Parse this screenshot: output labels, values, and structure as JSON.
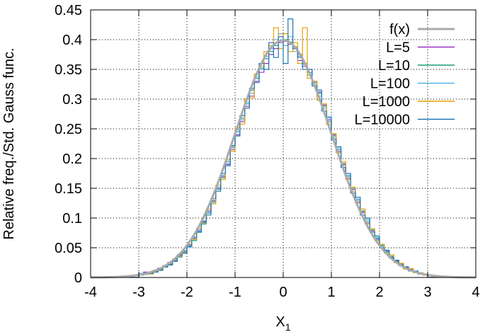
{
  "chart_data": {
    "type": "line",
    "xlabel": "X",
    "xlabel_subscript": "1",
    "ylabel": "Relative freq./Std. Gauss func.",
    "xlim": [
      -4,
      4
    ],
    "ylim": [
      0,
      0.45
    ],
    "x_ticks": [
      "-4",
      "-3",
      "-2",
      "-1",
      "0",
      "1",
      "2",
      "3",
      "4"
    ],
    "y_ticks": [
      "0",
      "0.05",
      "0.1",
      "0.15",
      "0.2",
      "0.25",
      "0.3",
      "0.35",
      "0.4",
      "0.45"
    ],
    "grid": true,
    "legend_position": "top-right",
    "series": [
      {
        "name": "f(x)",
        "color": "#aaaaaa",
        "kind": "smooth",
        "function": "standard-normal-pdf"
      },
      {
        "name": "L=5",
        "color": "#9b30c8",
        "kind": "step",
        "bin_width": 0.1,
        "x": [
          -3.0,
          -2.9,
          -2.8,
          -2.7,
          -2.6,
          -2.5,
          -2.4,
          -2.3,
          -2.2,
          -2.1,
          -2.0,
          -1.9,
          -1.8,
          -1.7,
          -1.6,
          -1.5,
          -1.4,
          -1.3,
          -1.2,
          -1.1,
          -1.0,
          -0.9,
          -0.8,
          -0.7,
          -0.6,
          -0.5,
          -0.4,
          -0.3,
          -0.2,
          -0.1,
          0.0,
          0.1,
          0.2,
          0.3,
          0.4,
          0.5,
          0.6,
          0.7,
          0.8,
          0.9,
          1.0,
          1.1,
          1.2,
          1.3,
          1.4,
          1.5,
          1.6,
          1.7,
          1.8,
          1.9,
          2.0,
          2.1,
          2.2,
          2.3,
          2.4,
          2.5,
          2.6,
          2.7,
          2.8,
          2.9
        ],
        "values": [
          0.006,
          0.009,
          0.008,
          0.012,
          0.016,
          0.02,
          0.025,
          0.03,
          0.037,
          0.045,
          0.055,
          0.066,
          0.08,
          0.095,
          0.112,
          0.13,
          0.15,
          0.17,
          0.19,
          0.215,
          0.24,
          0.262,
          0.288,
          0.305,
          0.33,
          0.345,
          0.36,
          0.375,
          0.385,
          0.395,
          0.397,
          0.392,
          0.385,
          0.365,
          0.355,
          0.35,
          0.33,
          0.312,
          0.29,
          0.265,
          0.24,
          0.212,
          0.19,
          0.167,
          0.148,
          0.127,
          0.11,
          0.092,
          0.078,
          0.064,
          0.054,
          0.044,
          0.035,
          0.028,
          0.022,
          0.017,
          0.014,
          0.01,
          0.008,
          0.005
        ]
      },
      {
        "name": "L=10",
        "color": "#159e7a",
        "kind": "step",
        "bin_width": 0.1,
        "x": [
          -3.0,
          -2.9,
          -2.8,
          -2.7,
          -2.6,
          -2.5,
          -2.4,
          -2.3,
          -2.2,
          -2.1,
          -2.0,
          -1.9,
          -1.8,
          -1.7,
          -1.6,
          -1.5,
          -1.4,
          -1.3,
          -1.2,
          -1.1,
          -1.0,
          -0.9,
          -0.8,
          -0.7,
          -0.6,
          -0.5,
          -0.4,
          -0.3,
          -0.2,
          -0.1,
          0.0,
          0.1,
          0.2,
          0.3,
          0.4,
          0.5,
          0.6,
          0.7,
          0.8,
          0.9,
          1.0,
          1.1,
          1.2,
          1.3,
          1.4,
          1.5,
          1.6,
          1.7,
          1.8,
          1.9,
          2.0,
          2.1,
          2.2,
          2.3,
          2.4,
          2.5,
          2.6,
          2.7,
          2.8,
          2.9
        ],
        "values": [
          0.004,
          0.006,
          0.008,
          0.01,
          0.013,
          0.018,
          0.022,
          0.028,
          0.035,
          0.043,
          0.052,
          0.062,
          0.076,
          0.09,
          0.108,
          0.128,
          0.148,
          0.168,
          0.195,
          0.22,
          0.245,
          0.268,
          0.292,
          0.315,
          0.335,
          0.352,
          0.368,
          0.38,
          0.39,
          0.398,
          0.4,
          0.396,
          0.388,
          0.375,
          0.36,
          0.345,
          0.328,
          0.31,
          0.288,
          0.262,
          0.238,
          0.215,
          0.192,
          0.17,
          0.15,
          0.13,
          0.112,
          0.095,
          0.08,
          0.066,
          0.054,
          0.043,
          0.034,
          0.027,
          0.021,
          0.016,
          0.012,
          0.009,
          0.006,
          0.005
        ]
      },
      {
        "name": "L=100",
        "color": "#56b4e9",
        "kind": "step",
        "bin_width": 0.1,
        "x": [
          -3.0,
          -2.9,
          -2.8,
          -2.7,
          -2.6,
          -2.5,
          -2.4,
          -2.3,
          -2.2,
          -2.1,
          -2.0,
          -1.9,
          -1.8,
          -1.7,
          -1.6,
          -1.5,
          -1.4,
          -1.3,
          -1.2,
          -1.1,
          -1.0,
          -0.9,
          -0.8,
          -0.7,
          -0.6,
          -0.5,
          -0.4,
          -0.3,
          -0.2,
          -0.1,
          0.0,
          0.1,
          0.2,
          0.3,
          0.4,
          0.5,
          0.6,
          0.7,
          0.8,
          0.9,
          1.0,
          1.1,
          1.2,
          1.3,
          1.4,
          1.5,
          1.6,
          1.7,
          1.8,
          1.9,
          2.0,
          2.1,
          2.2,
          2.3,
          2.4,
          2.5,
          2.6,
          2.7,
          2.8,
          2.9
        ],
        "values": [
          0.007,
          0.005,
          0.009,
          0.011,
          0.015,
          0.017,
          0.024,
          0.029,
          0.034,
          0.044,
          0.051,
          0.065,
          0.078,
          0.094,
          0.11,
          0.126,
          0.152,
          0.172,
          0.192,
          0.218,
          0.248,
          0.265,
          0.295,
          0.31,
          0.338,
          0.35,
          0.372,
          0.385,
          0.4,
          0.41,
          0.39,
          0.405,
          0.38,
          0.372,
          0.358,
          0.34,
          0.325,
          0.305,
          0.285,
          0.268,
          0.235,
          0.218,
          0.188,
          0.172,
          0.145,
          0.132,
          0.108,
          0.098,
          0.079,
          0.068,
          0.052,
          0.045,
          0.036,
          0.026,
          0.023,
          0.015,
          0.013,
          0.01,
          0.007,
          0.004
        ]
      },
      {
        "name": "L=1000",
        "color": "#e69f00",
        "kind": "step",
        "bin_width": 0.1,
        "x": [
          -3.0,
          -2.9,
          -2.8,
          -2.7,
          -2.6,
          -2.5,
          -2.4,
          -2.3,
          -2.2,
          -2.1,
          -2.0,
          -1.9,
          -1.8,
          -1.7,
          -1.6,
          -1.5,
          -1.4,
          -1.3,
          -1.2,
          -1.1,
          -1.0,
          -0.9,
          -0.8,
          -0.7,
          -0.6,
          -0.5,
          -0.4,
          -0.3,
          -0.2,
          -0.1,
          0.0,
          0.1,
          0.2,
          0.3,
          0.4,
          0.5,
          0.6,
          0.7,
          0.8,
          0.9,
          1.0,
          1.1,
          1.2,
          1.3,
          1.4,
          1.5,
          1.6,
          1.7,
          1.8,
          1.9,
          2.0,
          2.1,
          2.2,
          2.3,
          2.4,
          2.5,
          2.6,
          2.7,
          2.8,
          2.9
        ],
        "values": [
          0.005,
          0.007,
          0.006,
          0.01,
          0.014,
          0.019,
          0.023,
          0.031,
          0.036,
          0.042,
          0.056,
          0.064,
          0.083,
          0.092,
          0.115,
          0.124,
          0.155,
          0.165,
          0.198,
          0.212,
          0.252,
          0.258,
          0.3,
          0.302,
          0.342,
          0.355,
          0.38,
          0.39,
          0.42,
          0.385,
          0.41,
          0.38,
          0.395,
          0.36,
          0.42,
          0.335,
          0.33,
          0.298,
          0.292,
          0.258,
          0.242,
          0.21,
          0.195,
          0.165,
          0.152,
          0.125,
          0.115,
          0.09,
          0.082,
          0.062,
          0.056,
          0.041,
          0.038,
          0.025,
          0.024,
          0.014,
          0.015,
          0.008,
          0.008,
          0.004
        ]
      },
      {
        "name": "L=10000",
        "color": "#1f77b4",
        "kind": "step",
        "bin_width": 0.1,
        "x": [
          -3.0,
          -2.9,
          -2.8,
          -2.7,
          -2.6,
          -2.5,
          -2.4,
          -2.3,
          -2.2,
          -2.1,
          -2.0,
          -1.9,
          -1.8,
          -1.7,
          -1.6,
          -1.5,
          -1.4,
          -1.3,
          -1.2,
          -1.1,
          -1.0,
          -0.9,
          -0.8,
          -0.7,
          -0.6,
          -0.5,
          -0.4,
          -0.3,
          -0.2,
          -0.1,
          0.0,
          0.1,
          0.2,
          0.3,
          0.4,
          0.5,
          0.6,
          0.7,
          0.8,
          0.9,
          1.0,
          1.1,
          1.2,
          1.3,
          1.4,
          1.5,
          1.6,
          1.7,
          1.8,
          1.9,
          2.0,
          2.1,
          2.2,
          2.3,
          2.4,
          2.5,
          2.6,
          2.7,
          2.8,
          2.9
        ],
        "values": [
          0.005,
          0.008,
          0.007,
          0.009,
          0.012,
          0.018,
          0.021,
          0.027,
          0.038,
          0.041,
          0.053,
          0.068,
          0.077,
          0.093,
          0.105,
          0.133,
          0.145,
          0.175,
          0.188,
          0.222,
          0.238,
          0.272,
          0.285,
          0.318,
          0.328,
          0.36,
          0.35,
          0.395,
          0.37,
          0.405,
          0.36,
          0.435,
          0.385,
          0.37,
          0.35,
          0.35,
          0.322,
          0.315,
          0.28,
          0.27,
          0.232,
          0.22,
          0.185,
          0.175,
          0.142,
          0.135,
          0.105,
          0.1,
          0.076,
          0.07,
          0.05,
          0.046,
          0.033,
          0.029,
          0.02,
          0.018,
          0.011,
          0.011,
          0.006,
          0.005
        ]
      }
    ]
  }
}
